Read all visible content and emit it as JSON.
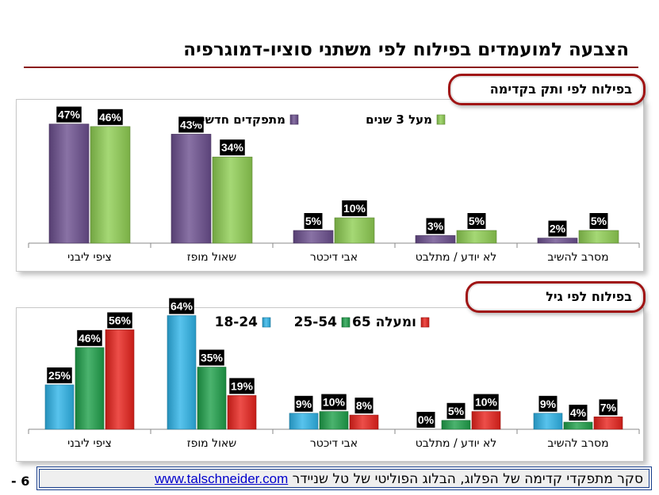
{
  "title": "הצבעה למועמדים בפילוח לפי משתני סוציו-דמוגרפיה",
  "panel1_heading": "בפילוח לפי ותק בקדימה",
  "panel2_heading": "בפילוח לפי גיל",
  "footer": {
    "text": "סקר מתפקדי קדימה של הפלוג, הבלוג הפוליטי של טל שניידר ",
    "link": "www.talschneider.com"
  },
  "page_number": "- 6",
  "colors": {
    "purple": "#6b4f8e",
    "green_light": "#8fce52",
    "blue": "#2eb4e8",
    "green": "#1ea04a",
    "red": "#e8221c"
  },
  "chart_data": [
    {
      "type": "bar",
      "categories": [
        "ציפי ליבני",
        "שאול מופז",
        "אבי דיכטר",
        "לא יודע / מתלבט",
        "מסרב להשיב"
      ],
      "series": [
        {
          "name": "מתפקדים חדשים",
          "values": [
            47,
            43,
            5,
            3,
            2
          ],
          "labels": [
            "47%",
            "43%",
            "5%",
            "3%",
            "2%"
          ],
          "color": "#6b4f8e"
        },
        {
          "name": "מעל 3 שנים",
          "values": [
            46,
            34,
            10,
            5,
            5
          ],
          "labels": [
            "46%",
            "34%",
            "10%",
            "5%",
            "5%"
          ],
          "color": "#8fce52"
        }
      ],
      "ylim": [
        0,
        50
      ],
      "legend": "top-right",
      "grid": false
    },
    {
      "type": "bar",
      "categories": [
        "ציפי ליבני",
        "שאול מופז",
        "אבי דיכטר",
        "לא יודע / מתלבט",
        "מסרב להשיב"
      ],
      "series": [
        {
          "name": "18-24",
          "values": [
            25,
            64,
            9,
            0,
            9
          ],
          "labels": [
            "25%",
            "64%",
            "9%",
            "0%",
            "9%"
          ],
          "color": "#2eb4e8"
        },
        {
          "name": "25-54",
          "values": [
            46,
            35,
            10,
            5,
            4
          ],
          "labels": [
            "46%",
            "35%",
            "10%",
            "5%",
            "4%"
          ],
          "color": "#1ea04a"
        },
        {
          "name": "65 ומעלה",
          "values": [
            56,
            19,
            8,
            10,
            7
          ],
          "labels": [
            "56%",
            "19%",
            "8%",
            "10%",
            "7%"
          ],
          "color": "#e8221c"
        }
      ],
      "ylim": [
        0,
        66
      ],
      "legend": "top",
      "grid": false
    }
  ]
}
